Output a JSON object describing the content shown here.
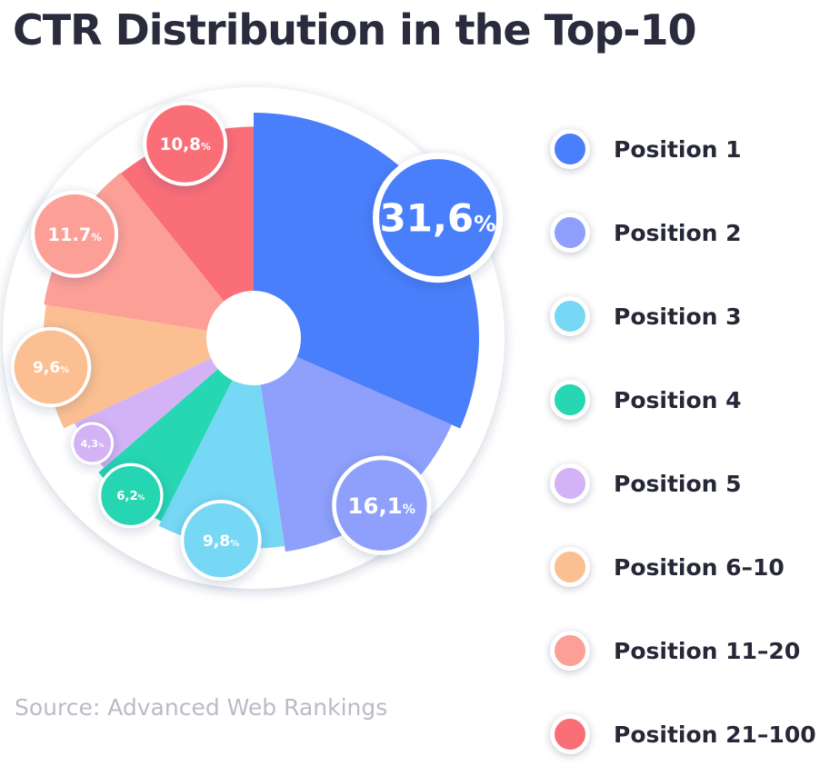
{
  "header": {
    "title": "CTR Distribution in the Top-10"
  },
  "footer": {
    "source": "Source: Advanced Web Rankings"
  },
  "chart_data": {
    "type": "pie",
    "title": "CTR Distribution in the Top-10",
    "categories": [
      "Position 1",
      "Position 2",
      "Position 3",
      "Position 4",
      "Position 5",
      "Position 6–10",
      "Position 11–20",
      "Position 21–100"
    ],
    "values": [
      31.6,
      16.1,
      9.8,
      6.2,
      4.3,
      9.6,
      11.7,
      10.8
    ],
    "value_labels": [
      "31,6",
      "16,1",
      "9,8",
      "6,2",
      "4,3",
      "9,6",
      "11.7",
      "10,8"
    ],
    "value_suffix": "%",
    "legend_position": "right",
    "colors": [
      "#4a7ffb",
      "#8ea0fb",
      "#76d8f5",
      "#27d6b3",
      "#d3b3f6",
      "#fbbf91",
      "#fc9f96",
      "#fa6e78"
    ]
  }
}
